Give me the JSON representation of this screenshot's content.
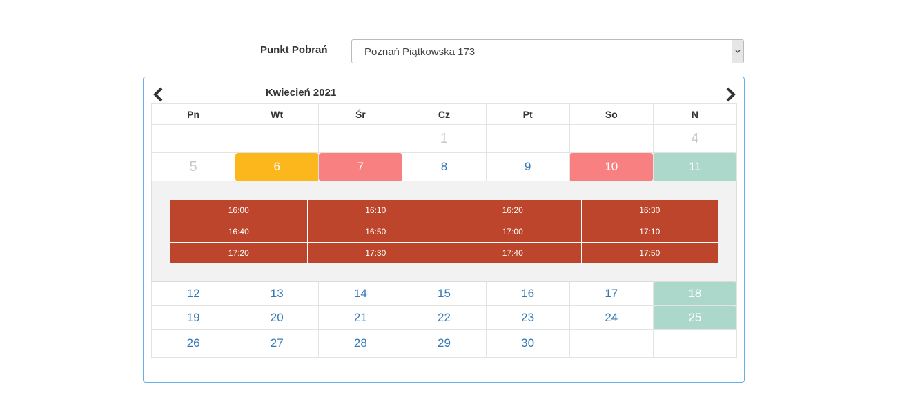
{
  "form": {
    "label": "Punkt Pobrań",
    "select_value": "Poznań Piątkowska 173"
  },
  "calendar": {
    "title": "Kwiecień 2021",
    "weekdays": [
      "Pn",
      "Wt",
      "Śr",
      "Cz",
      "Pt",
      "So",
      "N"
    ],
    "weeks": [
      [
        null,
        null,
        null,
        1,
        null,
        null,
        4
      ],
      [
        5,
        6,
        7,
        8,
        9,
        10,
        11
      ],
      [
        12,
        13,
        14,
        15,
        16,
        17,
        18
      ],
      [
        19,
        20,
        21,
        22,
        23,
        24,
        25
      ],
      [
        26,
        27,
        28,
        29,
        30,
        null,
        null
      ]
    ],
    "slots": [
      [
        "16:00",
        "16:10",
        "16:20",
        "16:30"
      ],
      [
        "16:40",
        "16:50",
        "17:00",
        "17:10"
      ],
      [
        "17:20",
        "17:30",
        "17:40",
        "17:50"
      ]
    ]
  }
}
